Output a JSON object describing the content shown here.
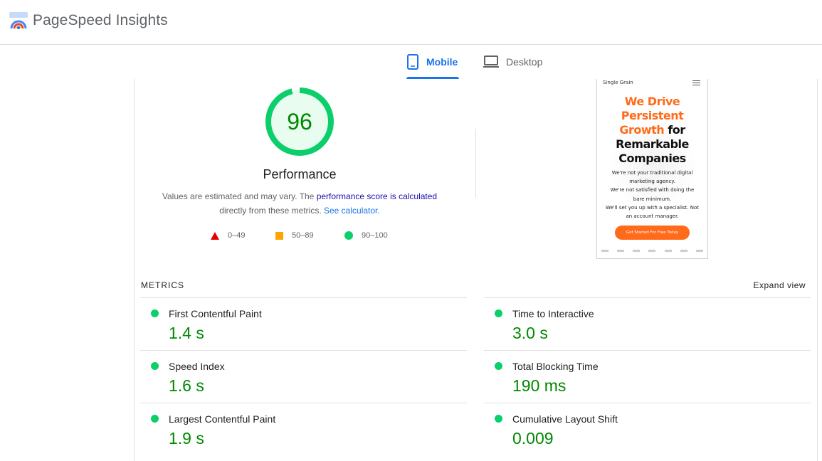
{
  "header": {
    "title": "PageSpeed Insights",
    "logo_icon": "pagespeed-logo"
  },
  "tabs": [
    {
      "label": "Mobile",
      "icon": "phone-icon",
      "active": true
    },
    {
      "label": "Desktop",
      "icon": "laptop-icon",
      "active": false
    }
  ],
  "score": {
    "value": "96",
    "fraction": 0.96,
    "label": "Performance",
    "color": "#0cce6b"
  },
  "description": {
    "text1": "Values are estimated and may vary. The",
    "link1": "performance score is calculated",
    "text2": "directly from these metrics.",
    "link2": "See calculator."
  },
  "legend": [
    {
      "range": "0–49",
      "shape": "triangle",
      "color": "#e60000"
    },
    {
      "range": "50–89",
      "shape": "square",
      "color": "#ffa400"
    },
    {
      "range": "90–100",
      "shape": "circle",
      "color": "#0cce6b"
    }
  ],
  "preview": {
    "brand": "Single Grain",
    "headline_orange_1": "We Drive",
    "headline_orange_2": "Persistent",
    "headline_orange_3": "Growth",
    "headline_black_1": " for",
    "headline_black_2": "Remarkable",
    "headline_black_3": "Companies",
    "body_1": "We're not your traditional digital marketing agency.",
    "body_2": "We're not satisfied with doing the bare minimum.",
    "body_3": "We'll set you up with a specialist. Not an account manager.",
    "cta": "Get Started For Free Today"
  },
  "metrics": {
    "label": "METRICS",
    "expand": "Expand view",
    "left": [
      {
        "name": "First Contentful Paint",
        "value": "1.4 s"
      },
      {
        "name": "Speed Index",
        "value": "1.6 s"
      },
      {
        "name": "Largest Contentful Paint",
        "value": "1.9 s"
      }
    ],
    "right": [
      {
        "name": "Time to Interactive",
        "value": "3.0 s"
      },
      {
        "name": "Total Blocking Time",
        "value": "190 ms"
      },
      {
        "name": "Cumulative Layout Shift",
        "value": "0.009"
      }
    ]
  }
}
